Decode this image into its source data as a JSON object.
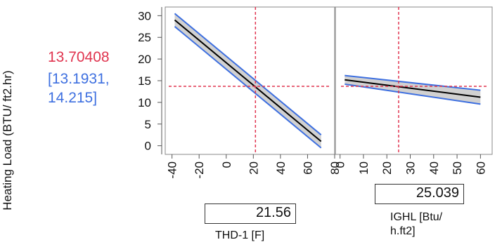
{
  "ylabel": "Heating Load (BTU/ ft2.hr)",
  "prediction": {
    "value": "13.70408",
    "ci": "[13.1931, 14.215]"
  },
  "colors": {
    "prediction": "#e0344f",
    "ci": "#3d6fe0",
    "band": "#bdbdbd",
    "line": "#000000"
  },
  "chart_data": [
    {
      "type": "line",
      "title": "",
      "factor": "THD-1 [F]",
      "current_value": "21.56",
      "xlim": [
        -45,
        80
      ],
      "ylim": [
        -2,
        32
      ],
      "x_ticks": [
        -40,
        -20,
        0,
        20,
        40,
        60,
        80
      ],
      "y_ticks": [
        0,
        5,
        10,
        15,
        20,
        25,
        30
      ],
      "grid": false,
      "series": [
        {
          "x": [
            -38,
            70
          ],
          "values": [
            29.0,
            1.0
          ]
        },
        {
          "x": [
            -38,
            70
          ],
          "values": [
            30.5,
            2.5
          ]
        },
        {
          "x": [
            -38,
            70
          ],
          "values": [
            27.5,
            -0.5
          ]
        }
      ],
      "crosshair": {
        "x": 21.56,
        "y": 13.70408
      }
    },
    {
      "type": "line",
      "title": "",
      "factor": "IGHL [Btu/ h.ft2]",
      "current_value": "25.039",
      "xlim": [
        -2,
        65
      ],
      "ylim": [
        -2,
        32
      ],
      "x_ticks": [
        0,
        10,
        20,
        30,
        40,
        50,
        60
      ],
      "grid": false,
      "series": [
        {
          "x": [
            2,
            60
          ],
          "values": [
            15.2,
            11.2
          ]
        },
        {
          "x": [
            2,
            60
          ],
          "values": [
            16.2,
            12.8
          ]
        },
        {
          "x": [
            2,
            60
          ],
          "values": [
            14.2,
            9.6
          ]
        }
      ],
      "crosshair": {
        "x": 25.039,
        "y": 13.70408
      }
    }
  ]
}
